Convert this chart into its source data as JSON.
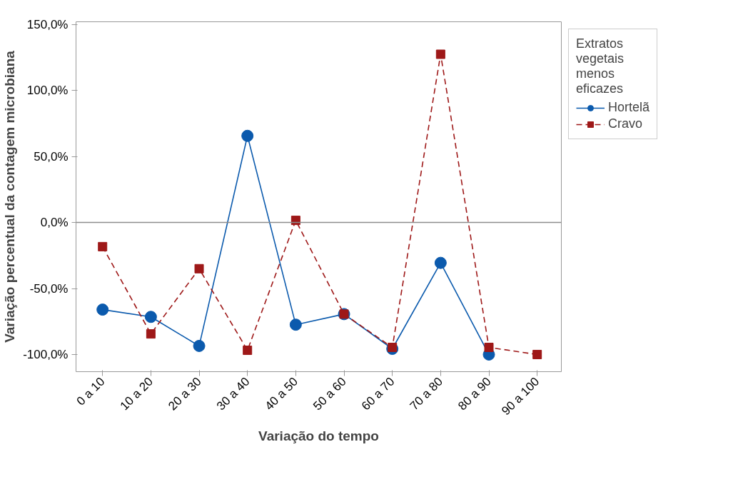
{
  "chart_data": {
    "type": "line",
    "xlabel": "Variação do tempo",
    "ylabel": "Variação percentual da contagem microbiana",
    "legend_title": "Extratos vegetais menos eficazes",
    "categories": [
      "0 a 10",
      "10 a 20",
      "20 a 30",
      "30 a 40",
      "40 a 50",
      "50 a 60",
      "60 a 70",
      "70 a 80",
      "80 a 90",
      "90 a 100"
    ],
    "series": [
      {
        "name": "Hortelã",
        "color": "#0b5aad",
        "marker": "circle",
        "line_style": "solid",
        "values": [
          -66,
          -71.5,
          -93.5,
          65.6,
          -77.4,
          -69.4,
          -95.7,
          -30.6,
          -100,
          null
        ]
      },
      {
        "name": "Cravo",
        "color": "#9e1818",
        "marker": "square",
        "line_style": "dashed",
        "values": [
          -18.3,
          -84.4,
          -35,
          -96.8,
          1.6,
          -69.4,
          -94.6,
          127.4,
          -94.6,
          -100
        ]
      }
    ],
    "ylim": [
      -113,
      152
    ],
    "yticks": [
      {
        "value": -100,
        "label": "-100,0%"
      },
      {
        "value": -50,
        "label": "-50,0%"
      },
      {
        "value": 0,
        "label": "0,0%"
      },
      {
        "value": 50,
        "label": "50,0%"
      },
      {
        "value": 100,
        "label": "100,0%"
      },
      {
        "value": 150,
        "label": "150,0%"
      }
    ],
    "ref_lines": [
      {
        "axis": "y",
        "value": 0,
        "label": null,
        "color": "#8c8c8c"
      }
    ],
    "grid": false,
    "legend": "top right"
  }
}
